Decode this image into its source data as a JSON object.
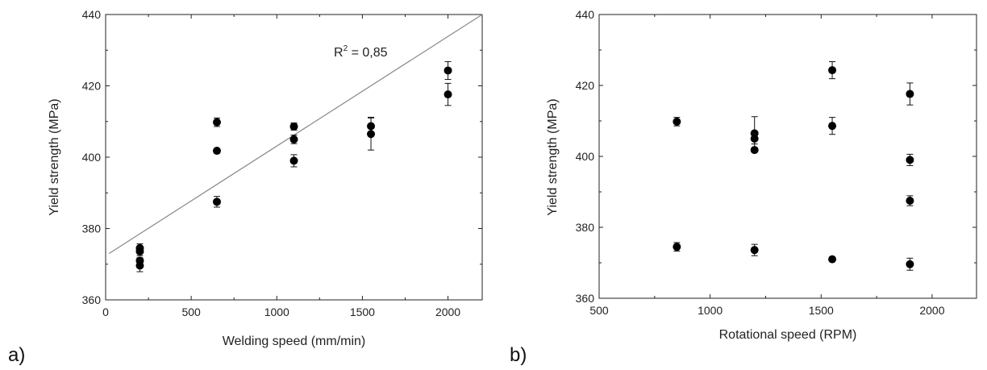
{
  "chart_data": [
    {
      "type": "scatter",
      "panel_label": "a)",
      "xlabel": "Welding speed (mm/min)",
      "ylabel": "Yield strength (MPa)",
      "xlim": [
        0,
        2200
      ],
      "ylim": [
        360,
        440
      ],
      "xticks": [
        "0",
        "500",
        "1000",
        "1500",
        "2000"
      ],
      "yticks": [
        "360",
        "380",
        "400",
        "420",
        "440"
      ],
      "grid": false,
      "annotation": {
        "text": "R",
        "sup": "2",
        "tail": " = 0,85"
      },
      "fit_line": {
        "x": [
          20,
          2200
        ],
        "y": [
          373,
          440
        ]
      },
      "points": [
        {
          "x": 200,
          "y": 374.5,
          "err": 1.2
        },
        {
          "x": 200,
          "y": 373.6,
          "err": 1.2
        },
        {
          "x": 200,
          "y": 371.0,
          "err": 0.8
        },
        {
          "x": 200,
          "y": 369.6,
          "err": 1.7
        },
        {
          "x": 650,
          "y": 409.8,
          "err": 1.2
        },
        {
          "x": 650,
          "y": 401.8,
          "err": 0.6
        },
        {
          "x": 650,
          "y": 387.5,
          "err": 1.5
        },
        {
          "x": 1100,
          "y": 408.6,
          "err": 1.0
        },
        {
          "x": 1100,
          "y": 405.0,
          "err": 1.2
        },
        {
          "x": 1100,
          "y": 399.0,
          "err": 1.7
        },
        {
          "x": 1550,
          "y": 408.7,
          "err": 2.5
        },
        {
          "x": 1550,
          "y": 406.5,
          "err": 4.5
        },
        {
          "x": 2000,
          "y": 424.3,
          "err": 2.5
        },
        {
          "x": 2000,
          "y": 417.6,
          "err": 3.1
        }
      ]
    },
    {
      "type": "scatter",
      "panel_label": "b)",
      "xlabel": "Rotational speed (RPM)",
      "ylabel": "Yield strength (MPa)",
      "xlim": [
        500,
        2200
      ],
      "ylim": [
        360,
        440
      ],
      "xticks": [
        "500",
        "1000",
        "1500",
        "2000"
      ],
      "yticks": [
        "360",
        "380",
        "400",
        "420",
        "440"
      ],
      "grid": false,
      "points": [
        {
          "x": 850,
          "y": 409.8,
          "err": 1.2
        },
        {
          "x": 850,
          "y": 374.5,
          "err": 1.2
        },
        {
          "x": 1200,
          "y": 406.5,
          "err": 4.7
        },
        {
          "x": 1200,
          "y": 405.0,
          "err": 1.5
        },
        {
          "x": 1200,
          "y": 401.8,
          "err": 0.6
        },
        {
          "x": 1200,
          "y": 373.6,
          "err": 1.6
        },
        {
          "x": 1550,
          "y": 424.3,
          "err": 2.4
        },
        {
          "x": 1550,
          "y": 408.6,
          "err": 2.4
        },
        {
          "x": 1550,
          "y": 371.0,
          "err": 0.6
        },
        {
          "x": 1900,
          "y": 417.6,
          "err": 3.1
        },
        {
          "x": 1900,
          "y": 399.0,
          "err": 1.6
        },
        {
          "x": 1900,
          "y": 387.5,
          "err": 1.4
        },
        {
          "x": 1900,
          "y": 369.6,
          "err": 1.7
        }
      ]
    }
  ]
}
